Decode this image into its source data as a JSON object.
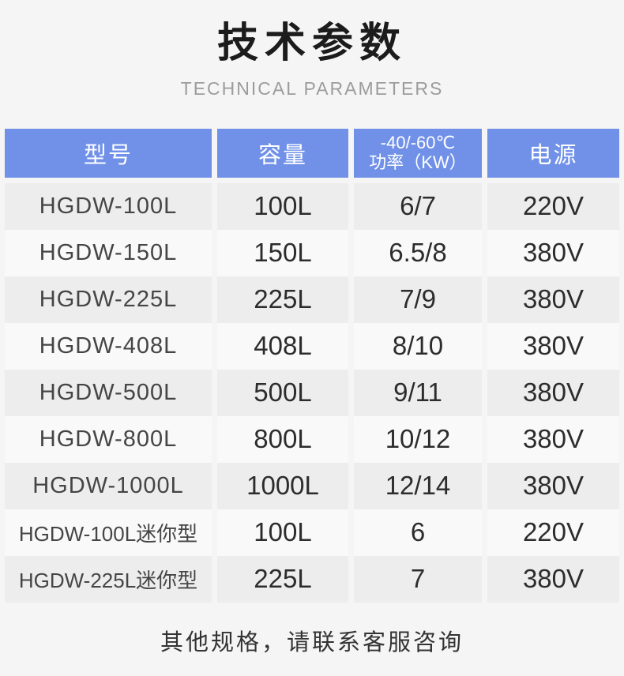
{
  "page": {
    "title": "技术参数",
    "subtitle": "TECHNICAL PARAMETERS",
    "footer_note": "其他规格，请联系客服咨询"
  },
  "colors": {
    "page_bg": "#f5f5f5",
    "header_bg": "#7191e8",
    "header_text": "#ffffff",
    "row_odd_bg": "#ededed",
    "row_even_bg": "#f9f9f9",
    "title_text": "#1c1c1c",
    "subtitle_text": "#9c9c9c",
    "cell_text": "#2c2c2c"
  },
  "table": {
    "headers": {
      "model": "型号",
      "capacity": "容量",
      "power_line1": "-40/-60℃",
      "power_line2": "功率（KW）",
      "power_supply": "电源"
    },
    "rows": [
      {
        "model": "HGDW-100L",
        "capacity": "100L",
        "power": "6/7",
        "supply": "220V"
      },
      {
        "model": "HGDW-150L",
        "capacity": "150L",
        "power": "6.5/8",
        "supply": "380V"
      },
      {
        "model": "HGDW-225L",
        "capacity": "225L",
        "power": "7/9",
        "supply": "380V"
      },
      {
        "model": "HGDW-408L",
        "capacity": "408L",
        "power": "8/10",
        "supply": "380V"
      },
      {
        "model": "HGDW-500L",
        "capacity": "500L",
        "power": "9/11",
        "supply": "380V"
      },
      {
        "model": "HGDW-800L",
        "capacity": "800L",
        "power": "10/12",
        "supply": "380V"
      },
      {
        "model": "HGDW-1000L",
        "capacity": "1000L",
        "power": "12/14",
        "supply": "380V"
      },
      {
        "model": "HGDW-100L迷你型",
        "capacity": "100L",
        "power": "6",
        "supply": "220V"
      },
      {
        "model": "HGDW-225L迷你型",
        "capacity": "225L",
        "power": "7",
        "supply": "380V"
      }
    ]
  }
}
